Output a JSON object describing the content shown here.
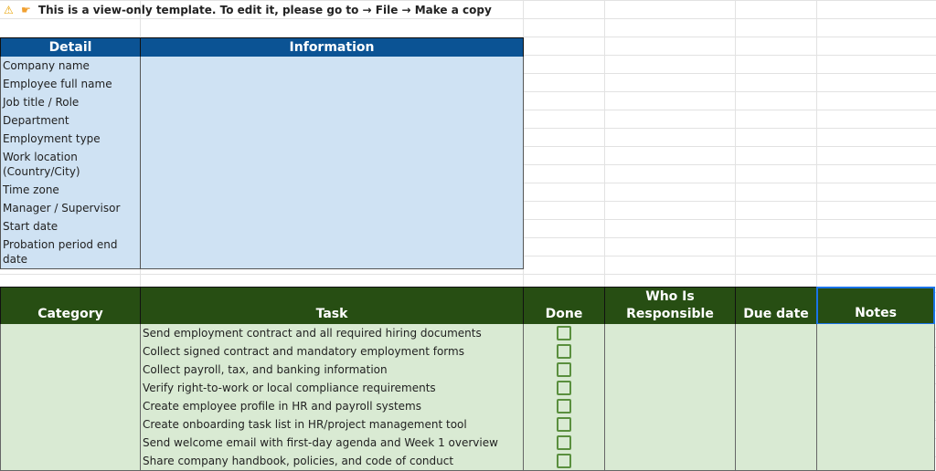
{
  "banner": {
    "warning_icon": "warning-icon",
    "pointing_icon": "pointing-hand-icon",
    "text": "This is a view-only template. To edit it, please go to → File → Make a copy"
  },
  "details_table": {
    "headers": [
      "Detail",
      "Information"
    ],
    "rows": [
      "Company name",
      "Employee full name",
      "Job title / Role",
      "Department",
      "Employment type",
      "Work location (Country/City)",
      "Time zone",
      "Manager / Supervisor",
      "Start date",
      "Probation period end date"
    ]
  },
  "tasks_table": {
    "headers": [
      "Category",
      "Task",
      "Done",
      "Who Is Responsible",
      "Due date",
      "Notes"
    ],
    "rows": [
      {
        "task": "Send employment contract and all required hiring documents",
        "done": false
      },
      {
        "task": "Collect signed contract and mandatory employment forms",
        "done": false
      },
      {
        "task": "Collect payroll, tax, and banking information",
        "done": false
      },
      {
        "task": "Verify right-to-work or local compliance requirements",
        "done": false
      },
      {
        "task": "Create employee profile in HR and payroll systems",
        "done": false
      },
      {
        "task": "Create onboarding task list in HR/project management tool",
        "done": false
      },
      {
        "task": "Send welcome email with first-day agenda and Week 1 overview",
        "done": false
      },
      {
        "task": "Share company handbook, policies, and code of conduct",
        "done": false
      }
    ]
  },
  "colors": {
    "blue_header": "#0b5394",
    "blue_fill": "#cfe2f3",
    "green_header": "#274e13",
    "green_fill": "#d9ead3",
    "selection": "#1a73e8"
  }
}
